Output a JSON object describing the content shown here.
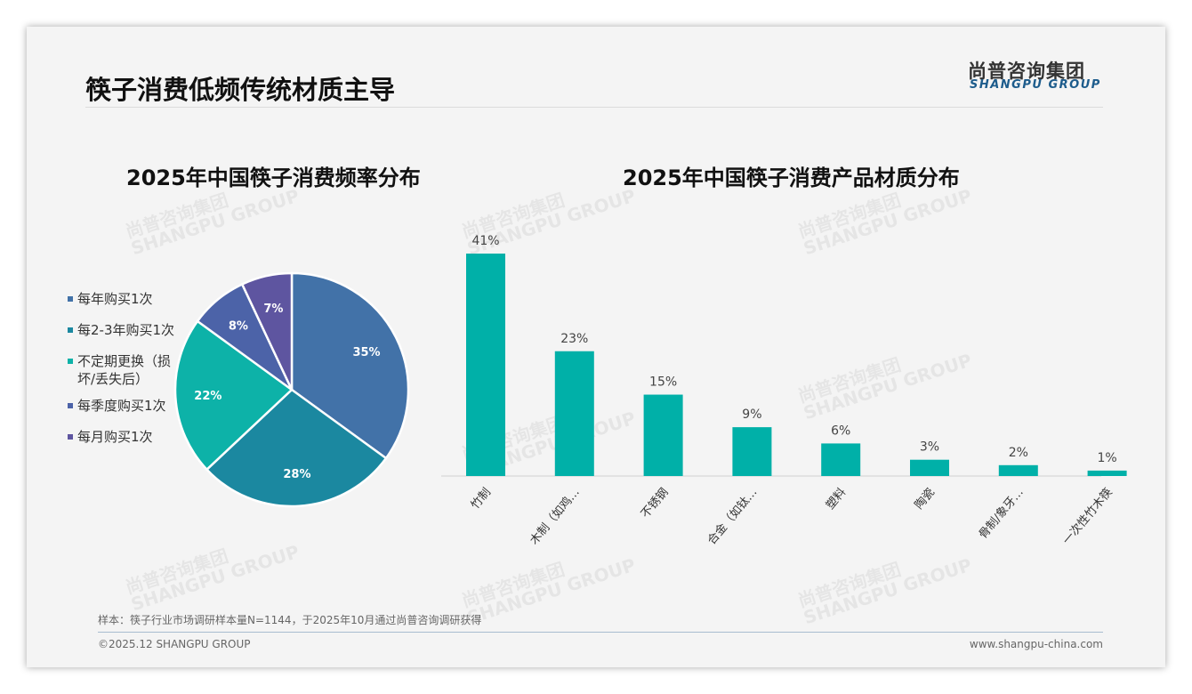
{
  "header": {
    "title": "筷子消费低频传统材质主导",
    "logo_cn": "尚普咨询集团",
    "logo_en": "SHANGPU GROUP"
  },
  "footer": {
    "note": "样本：筷子行业市场调研样本量N=1144，于2025年10月通过尚普咨询调研获得",
    "copyright": "©2025.12 SHANGPU GROUP",
    "url": "www.shangpu-china.com"
  },
  "chart_data": [
    {
      "type": "pie",
      "title": "2025年中国筷子消费频率分布",
      "legend_position": "left",
      "categories": [
        "每年购买1次",
        "每2-3年购买1次",
        "不定期更换（损坏/丢失后）",
        "每季度购买1次",
        "每月购买1次"
      ],
      "values": [
        35,
        28,
        22,
        8,
        7
      ],
      "labels": [
        "35%",
        "28%",
        "22%",
        "8%",
        "7%"
      ],
      "colors": [
        "#4272a8",
        "#1b88a0",
        "#0db2a8",
        "#4c63a8",
        "#5e55a0"
      ]
    },
    {
      "type": "bar",
      "title": "2025年中国筷子消费产品材质分布",
      "categories": [
        "竹制",
        "木制（如鸡…",
        "不锈钢",
        "合金（如钛…",
        "塑料",
        "陶瓷",
        "骨制/象牙…",
        "一次性竹木筷"
      ],
      "values": [
        41,
        23,
        15,
        9,
        6,
        3,
        2,
        1
      ],
      "labels": [
        "41%",
        "23%",
        "15%",
        "9%",
        "6%",
        "3%",
        "2%",
        "1%"
      ],
      "ylim": [
        0,
        45
      ],
      "color": "#00b0a8"
    }
  ]
}
